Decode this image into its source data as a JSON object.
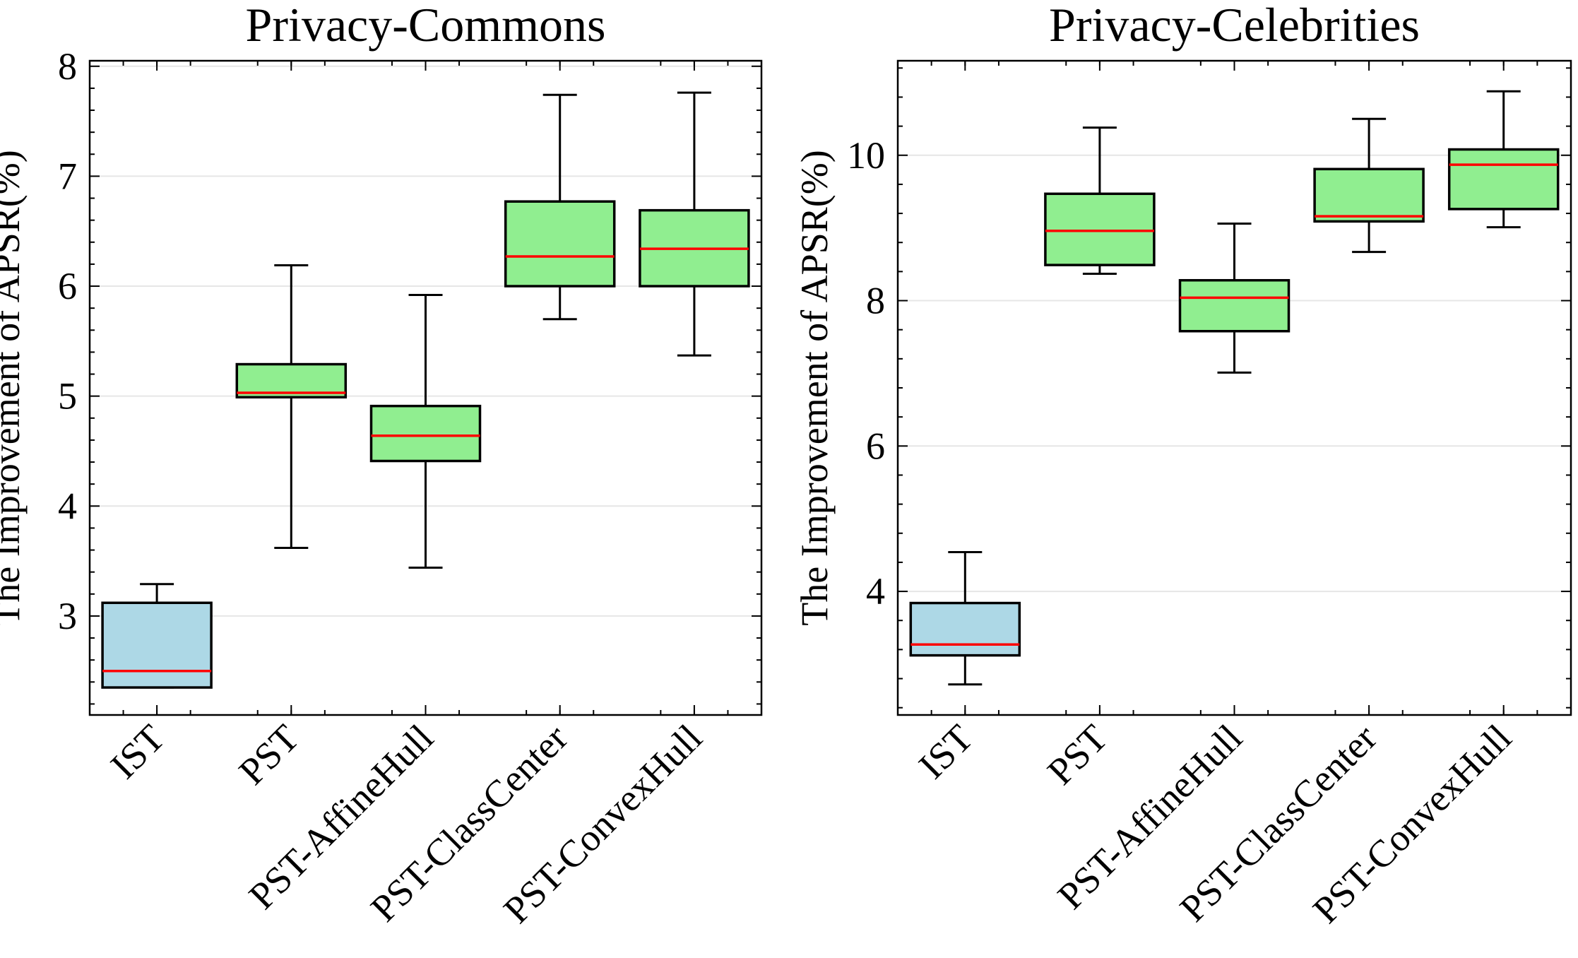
{
  "chart_data": [
    {
      "type": "boxplot",
      "title": "Privacy-Commons",
      "xlabel": "",
      "ylabel": "The Improvement of APSR(%)",
      "ylim": [
        2.1,
        8.05
      ],
      "yticks": [
        3,
        4,
        5,
        6,
        7,
        8
      ],
      "grid": "y",
      "categories": [
        "IST",
        "PST",
        "PST-AffineHull",
        "PST-ClassCenter",
        "PST-ConvexHull"
      ],
      "boxes": [
        {
          "name": "IST",
          "whisker_low": 2.35,
          "q1": 2.35,
          "median": 2.5,
          "q3": 3.12,
          "whisker_high": 3.29,
          "color": "#add8e6"
        },
        {
          "name": "PST",
          "whisker_low": 3.62,
          "q1": 4.99,
          "median": 5.03,
          "q3": 5.29,
          "whisker_high": 6.19,
          "color": "#90ee90"
        },
        {
          "name": "PST-AffineHull",
          "whisker_low": 3.44,
          "q1": 4.41,
          "median": 4.64,
          "q3": 4.91,
          "whisker_high": 5.92,
          "color": "#90ee90"
        },
        {
          "name": "PST-ClassCenter",
          "whisker_low": 5.7,
          "q1": 6.0,
          "median": 6.27,
          "q3": 6.77,
          "whisker_high": 7.74,
          "color": "#90ee90"
        },
        {
          "name": "PST-ConvexHull",
          "whisker_low": 5.37,
          "q1": 6.0,
          "median": 6.34,
          "q3": 6.69,
          "whisker_high": 7.76,
          "color": "#90ee90"
        }
      ]
    },
    {
      "type": "boxplot",
      "title": "Privacy-Celebrities",
      "xlabel": "",
      "ylabel": "The Improvement of APSR(%)",
      "ylim": [
        2.3,
        11.3
      ],
      "yticks": [
        4,
        6,
        8,
        10
      ],
      "grid": "y",
      "categories": [
        "IST",
        "PST",
        "PST-AffineHull",
        "PST-ClassCenter",
        "PST-ConvexHull"
      ],
      "boxes": [
        {
          "name": "IST",
          "whisker_low": 2.72,
          "q1": 3.12,
          "median": 3.27,
          "q3": 3.84,
          "whisker_high": 4.54,
          "color": "#add8e6"
        },
        {
          "name": "PST",
          "whisker_low": 8.37,
          "q1": 8.49,
          "median": 8.96,
          "q3": 9.47,
          "whisker_high": 10.38,
          "color": "#90ee90"
        },
        {
          "name": "PST-AffineHull",
          "whisker_low": 7.01,
          "q1": 7.58,
          "median": 8.04,
          "q3": 8.28,
          "whisker_high": 9.06,
          "color": "#90ee90"
        },
        {
          "name": "PST-ClassCenter",
          "whisker_low": 8.67,
          "q1": 9.09,
          "median": 9.16,
          "q3": 9.81,
          "whisker_high": 10.5,
          "color": "#90ee90"
        },
        {
          "name": "PST-ConvexHull",
          "whisker_low": 9.01,
          "q1": 9.26,
          "median": 9.87,
          "q3": 10.08,
          "whisker_high": 10.88,
          "color": "#90ee90"
        }
      ]
    }
  ],
  "colors": {
    "median": "#ff0000",
    "box_edge": "#000000",
    "grid": "#e6e6e6"
  }
}
